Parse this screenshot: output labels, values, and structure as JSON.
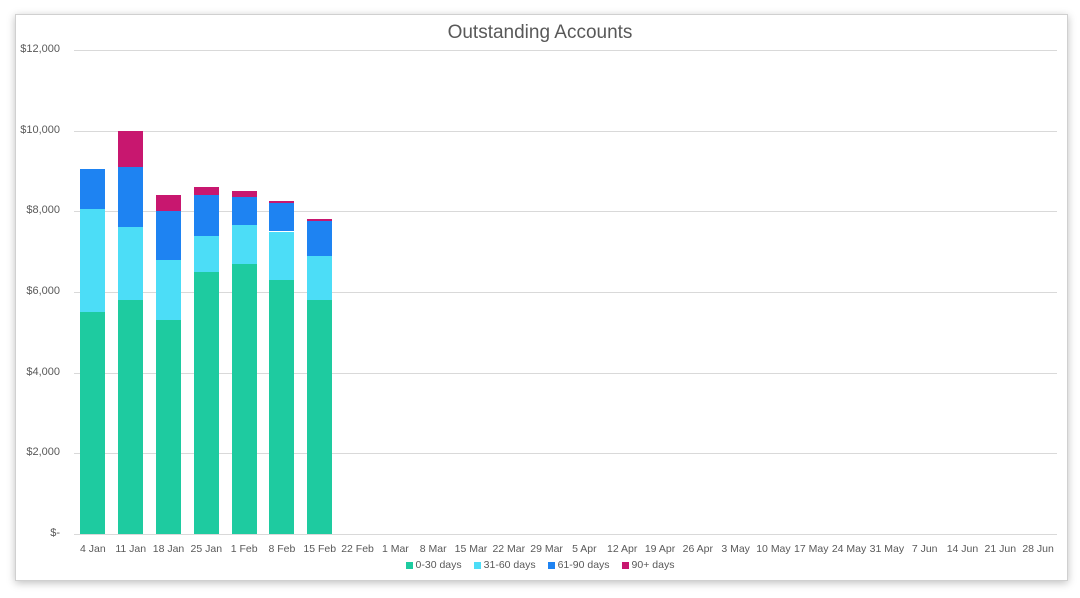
{
  "chart_data": {
    "type": "bar",
    "stacked": true,
    "title": "Outstanding Accounts",
    "xlabel": "",
    "ylabel": "",
    "ylim": [
      0,
      12000
    ],
    "y_ticks": [
      0,
      2000,
      4000,
      6000,
      8000,
      10000,
      12000
    ],
    "y_tick_labels": [
      "$-",
      "$2,000",
      "$4,000",
      "$6,000",
      "$8,000",
      "$10,000",
      "$12,000"
    ],
    "grid": true,
    "legend_position": "bottom",
    "categories": [
      "4 Jan",
      "11 Jan",
      "18 Jan",
      "25 Jan",
      "1 Feb",
      "8 Feb",
      "15 Feb",
      "22 Feb",
      "1 Mar",
      "8 Mar",
      "15 Mar",
      "22 Mar",
      "29 Mar",
      "5 Apr",
      "12 Apr",
      "19 Apr",
      "26 Apr",
      "3 May",
      "10 May",
      "17 May",
      "24 May",
      "31 May",
      "7 Jun",
      "14 Jun",
      "21 Jun",
      "28 Jun"
    ],
    "series": [
      {
        "name": "0-30 days",
        "color": "#1ECBA0",
        "values": [
          5500,
          5800,
          5300,
          6500,
          6700,
          6300,
          5800,
          null,
          null,
          null,
          null,
          null,
          null,
          null,
          null,
          null,
          null,
          null,
          null,
          null,
          null,
          null,
          null,
          null,
          null,
          null
        ]
      },
      {
        "name": "31-60 days",
        "color": "#4CDDF7",
        "values": [
          2550,
          1800,
          1500,
          900,
          950,
          1200,
          1100,
          null,
          null,
          null,
          null,
          null,
          null,
          null,
          null,
          null,
          null,
          null,
          null,
          null,
          null,
          null,
          null,
          null,
          null,
          null
        ]
      },
      {
        "name": "61-90 days",
        "color": "#1E83F2",
        "values": [
          1000,
          1500,
          1200,
          1000,
          700,
          700,
          850,
          null,
          null,
          null,
          null,
          null,
          null,
          null,
          null,
          null,
          null,
          null,
          null,
          null,
          null,
          null,
          null,
          null,
          null,
          null
        ]
      },
      {
        "name": "90+ days",
        "color": "#C8176F",
        "values": [
          0,
          900,
          400,
          200,
          150,
          50,
          50,
          null,
          null,
          null,
          null,
          null,
          null,
          null,
          null,
          null,
          null,
          null,
          null,
          null,
          null,
          null,
          null,
          null,
          null,
          null
        ]
      }
    ]
  }
}
